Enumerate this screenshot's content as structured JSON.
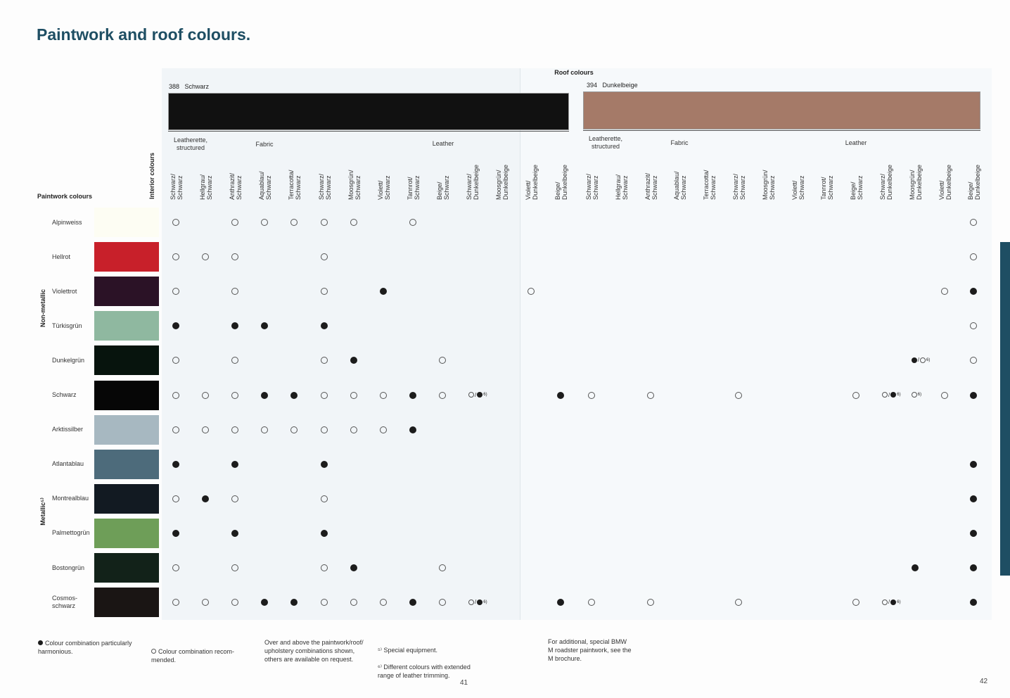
{
  "title": "Paintwork and roof colours.",
  "roof": {
    "title": "Roof colours",
    "left": {
      "code": "388",
      "name": "Schwarz",
      "color": "#111111"
    },
    "right": {
      "code": "394",
      "name": "Dunkelbeige",
      "color": "#a57a68"
    }
  },
  "upholstery_groups": [
    {
      "label": "Leatherette,\nstructured"
    },
    {
      "label": "Fabric"
    },
    {
      "label": "Leather"
    }
  ],
  "interior_label": "Interior colours",
  "paintwork_label": "Paintwork colours",
  "group_labels": {
    "non_metallic": "Non-metallic",
    "metallic": "Metallic⁵⁾"
  },
  "columns": [
    [
      "Schwarz/",
      "Schwarz"
    ],
    [
      "Hellgrau/",
      "Schwarz"
    ],
    [
      "Anthrazit/",
      "Schwarz"
    ],
    [
      "Aquablau/",
      "Schwarz"
    ],
    [
      "Terracotta/",
      "Schwarz"
    ],
    [
      "Schwarz/",
      "Schwarz"
    ],
    [
      "Moosgrün/",
      "Schwarz"
    ],
    [
      "Violett/",
      "Schwarz"
    ],
    [
      "Tannrot/",
      "Schwarz"
    ],
    [
      "Beige/",
      "Schwarz"
    ],
    [
      "Schwarz/",
      "Dunkelbeige"
    ],
    [
      "Moosgrün/",
      "Dunkelbeige"
    ],
    [
      "Violett/",
      "Dunkelbeige"
    ],
    [
      "Beige/",
      "Dunkelbeige"
    ],
    [
      "Schwarz/",
      "Schwarz"
    ],
    [
      "Hellgrau/",
      "Schwarz"
    ],
    [
      "Anthrazit/",
      "Schwarz"
    ],
    [
      "Aquablau/",
      "Schwarz"
    ],
    [
      "Terracotta/",
      "Schwarz"
    ],
    [
      "Schwarz/",
      "Schwarz"
    ],
    [
      "Moosgrün/",
      "Schwarz"
    ],
    [
      "Violett/",
      "Schwarz"
    ],
    [
      "Tannrot/",
      "Schwarz"
    ],
    [
      "Beige/",
      "Schwarz"
    ],
    [
      "Schwarz/",
      "Dunkelbeige"
    ],
    [
      "Moosgrün/",
      "Dunkelbeige"
    ],
    [
      "Violett/",
      "Dunkelbeige"
    ],
    [
      "Beige/",
      "Dunkelbeige"
    ]
  ],
  "rows": [
    {
      "name": "Alpinweiss",
      "color": "#fdfdf3",
      "marks": [
        [
          0,
          "o"
        ],
        [
          2,
          "o"
        ],
        [
          3,
          "o"
        ],
        [
          4,
          "o"
        ],
        [
          5,
          "o"
        ],
        [
          6,
          "o"
        ],
        [
          8,
          "o"
        ],
        [
          27,
          "o"
        ]
      ]
    },
    {
      "name": "Hellrot",
      "color": "#c8202a",
      "marks": [
        [
          0,
          "o"
        ],
        [
          1,
          "o"
        ],
        [
          2,
          "o"
        ],
        [
          5,
          "o"
        ],
        [
          27,
          "o"
        ]
      ]
    },
    {
      "name": "Violettrot",
      "color": "#2b1226",
      "marks": [
        [
          0,
          "o"
        ],
        [
          2,
          "o"
        ],
        [
          5,
          "o"
        ],
        [
          7,
          "f"
        ],
        [
          12,
          "o"
        ],
        [
          26,
          "o"
        ],
        [
          27,
          "f"
        ]
      ]
    },
    {
      "name": "Türkisgrün",
      "color": "#8fb8a0",
      "marks": [
        [
          0,
          "f"
        ],
        [
          2,
          "f"
        ],
        [
          3,
          "f"
        ],
        [
          5,
          "f"
        ],
        [
          27,
          "o"
        ]
      ]
    },
    {
      "name": "Dunkelgrün",
      "color": "#07140d",
      "marks": [
        [
          0,
          "o"
        ],
        [
          2,
          "o"
        ],
        [
          5,
          "o"
        ],
        [
          6,
          "f"
        ],
        [
          9,
          "o"
        ],
        [
          25,
          "fo"
        ],
        [
          27,
          "o"
        ]
      ]
    },
    {
      "name": "Schwarz",
      "color": "#060606",
      "marks": [
        [
          0,
          "o"
        ],
        [
          1,
          "o"
        ],
        [
          2,
          "o"
        ],
        [
          3,
          "f"
        ],
        [
          4,
          "f"
        ],
        [
          5,
          "o"
        ],
        [
          6,
          "o"
        ],
        [
          7,
          "o"
        ],
        [
          8,
          "f"
        ],
        [
          9,
          "o"
        ],
        [
          10,
          "of"
        ],
        [
          13,
          "f"
        ],
        [
          14,
          "o"
        ],
        [
          16,
          "o"
        ],
        [
          19,
          "o"
        ],
        [
          23,
          "o"
        ],
        [
          24,
          "of"
        ],
        [
          25,
          "o6"
        ],
        [
          26,
          "o"
        ],
        [
          27,
          "f"
        ]
      ]
    },
    {
      "name": "Arktissilber",
      "color": "#a7b8c1",
      "marks": [
        [
          0,
          "o"
        ],
        [
          1,
          "o"
        ],
        [
          2,
          "o"
        ],
        [
          3,
          "o"
        ],
        [
          4,
          "o"
        ],
        [
          5,
          "o"
        ],
        [
          6,
          "o"
        ],
        [
          7,
          "o"
        ],
        [
          8,
          "f"
        ]
      ]
    },
    {
      "name": "Atlantablau",
      "color": "#4d6b7b",
      "marks": [
        [
          0,
          "f"
        ],
        [
          2,
          "f"
        ],
        [
          5,
          "f"
        ],
        [
          27,
          "f"
        ]
      ]
    },
    {
      "name": "Montrealblau",
      "color": "#121a22",
      "marks": [
        [
          0,
          "o"
        ],
        [
          1,
          "f"
        ],
        [
          2,
          "o"
        ],
        [
          5,
          "o"
        ],
        [
          27,
          "f"
        ]
      ]
    },
    {
      "name": "Palmettogrün",
      "color": "#6e9e58",
      "marks": [
        [
          0,
          "f"
        ],
        [
          2,
          "f"
        ],
        [
          5,
          "f"
        ],
        [
          27,
          "f"
        ]
      ]
    },
    {
      "name": "Bostongrün",
      "color": "#122219",
      "marks": [
        [
          0,
          "o"
        ],
        [
          2,
          "o"
        ],
        [
          5,
          "o"
        ],
        [
          6,
          "f"
        ],
        [
          9,
          "o"
        ],
        [
          25,
          "f"
        ],
        [
          27,
          "f"
        ]
      ]
    },
    {
      "name": "Cosmos-\nschwarz",
      "color": "#1a1514",
      "marks": [
        [
          0,
          "o"
        ],
        [
          1,
          "o"
        ],
        [
          2,
          "o"
        ],
        [
          3,
          "f"
        ],
        [
          4,
          "f"
        ],
        [
          5,
          "o"
        ],
        [
          6,
          "o"
        ],
        [
          7,
          "o"
        ],
        [
          8,
          "f"
        ],
        [
          9,
          "o"
        ],
        [
          10,
          "of"
        ],
        [
          13,
          "f"
        ],
        [
          14,
          "o"
        ],
        [
          16,
          "o"
        ],
        [
          19,
          "o"
        ],
        [
          23,
          "o"
        ],
        [
          24,
          "of"
        ],
        [
          27,
          "f"
        ]
      ]
    }
  ],
  "footnote_mark": "6)",
  "footer": {
    "filled_note": "Colour combination particularly harmonious.",
    "open_note": "Colour combination recom-\nmended.",
    "extra": "Over and above the paintwork/roof/\nupholstery combinations shown,\nothers are available on request.",
    "fn5": "⁵⁾ Special equipment.",
    "fn6": "⁶⁾ Different colours with extended\nrange of leather trimming.",
    "bmw": "For additional, special BMW\nM roadster paintwork, see the\nM brochure."
  },
  "page_left": "41",
  "page_right": "42"
}
